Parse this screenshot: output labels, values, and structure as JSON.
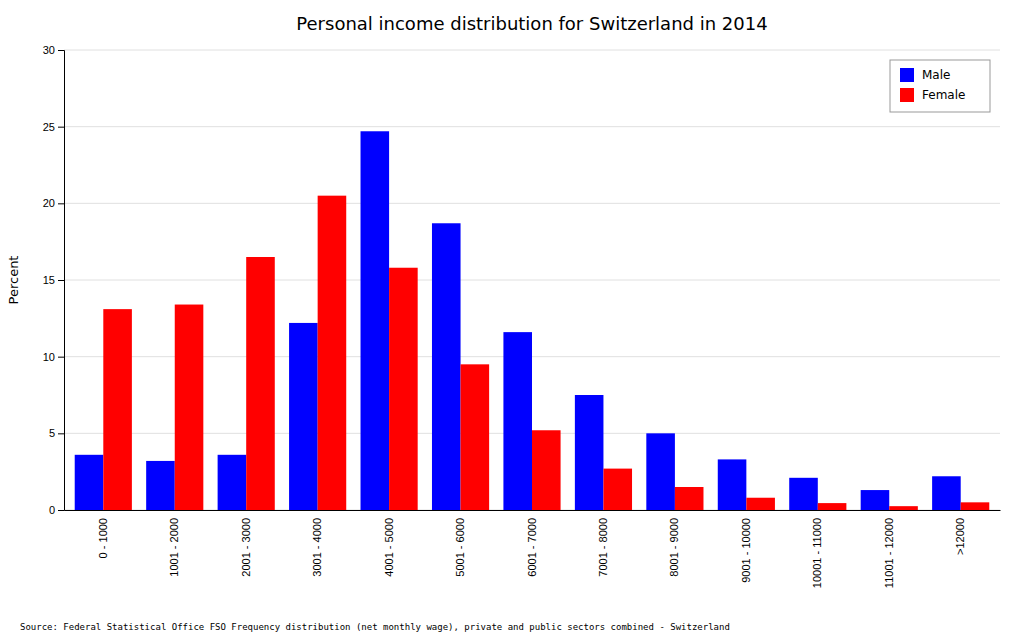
{
  "chart_data": {
    "type": "bar",
    "title": "Personal income distribution for Switzerland in 2014",
    "ylabel": "Percent",
    "categories": [
      "0 - 1000",
      "1001 - 2000",
      "2001 - 3000",
      "3001 - 4000",
      "4001 - 5000",
      "5001 - 6000",
      "6001 - 7000",
      "7001 - 8000",
      "8001 - 9000",
      "9001 - 10000",
      "10001 - 11000",
      "11001 - 12000",
      ">12000"
    ],
    "series": [
      {
        "name": "Male",
        "color": "#0000ff",
        "values": [
          3.6,
          3.2,
          3.6,
          12.2,
          24.7,
          18.7,
          11.6,
          7.5,
          5.0,
          3.3,
          2.1,
          1.3,
          2.2
        ]
      },
      {
        "name": "Female",
        "color": "#ff0000",
        "values": [
          13.1,
          13.4,
          16.5,
          20.5,
          15.8,
          9.5,
          5.2,
          2.7,
          1.5,
          0.8,
          0.45,
          0.25,
          0.5
        ]
      }
    ],
    "ylim": [
      0,
      30
    ],
    "yticks": [
      0,
      5,
      10,
      15,
      20,
      25,
      30
    ],
    "grid": true,
    "legend": "upper right",
    "annotations": [
      "Source: Federal Statistical Office FSO Frequency distribution (net monthly wage), private and public sectors combined - Switzerland"
    ]
  }
}
